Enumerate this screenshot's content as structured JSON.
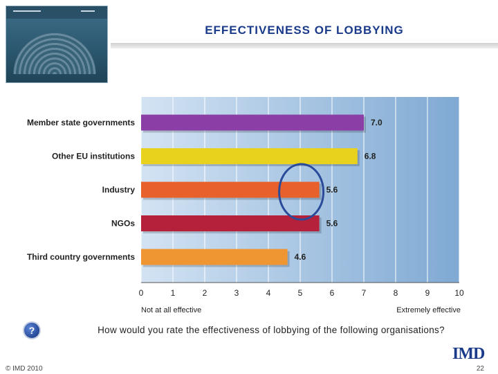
{
  "slide": {
    "title": "EFFECTIVENESS OF LOBBYING",
    "question": "How would you rate the effectiveness of lobbying of the following organisations?",
    "copyright": "© IMD 2010",
    "page_number": "22",
    "logo_text": "IMD",
    "question_icon": "?"
  },
  "chart_data": {
    "type": "bar",
    "orientation": "horizontal",
    "categories": [
      "Member state governments",
      "Other EU institutions",
      "Industry",
      "NGOs",
      "Third country governments"
    ],
    "values": [
      7.0,
      6.8,
      5.6,
      5.6,
      4.6
    ],
    "value_labels": [
      "7.0",
      "6.8",
      "5.6",
      "5.6",
      "4.6"
    ],
    "colors": [
      "#8b3fa6",
      "#e8d21d",
      "#e8602a",
      "#b5203a",
      "#ef9531"
    ],
    "xlim": [
      0,
      10
    ],
    "x_ticks": [
      "0",
      "1",
      "2",
      "3",
      "4",
      "5",
      "6",
      "7",
      "8",
      "9",
      "10"
    ],
    "x_label_left": "Not at all effective",
    "x_label_right": "Extremely effective",
    "grid": true,
    "annotation": {
      "shape": "ellipse",
      "category": "Industry",
      "color": "#2a4a9a"
    }
  }
}
